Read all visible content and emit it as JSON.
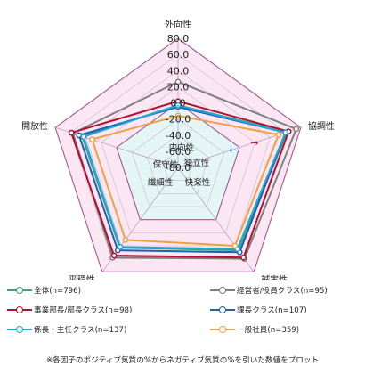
{
  "chart_data": {
    "type": "radar",
    "axes": [
      "外向性",
      "協調性",
      "誠実性",
      "平穏性",
      "開放性"
    ],
    "ticks": [
      "80.0",
      "60.0",
      "40.0",
      "20.0",
      "0.0",
      "-20.0",
      "-40.0",
      "-60.0",
      "-80.0"
    ],
    "rmin": -80,
    "rmax": 80,
    "series": [
      {
        "name": "全体(n=796)",
        "color": "#3aa37a",
        "values": [
          -3,
          62,
          47,
          43,
          45
        ]
      },
      {
        "name": "経営者/役員クラス(n=95)",
        "color": "#808080",
        "values": [
          26,
          74,
          60,
          58,
          57
        ]
      },
      {
        "name": "事業部長/部長クラス(n=98)",
        "color": "#b3102f",
        "values": [
          2,
          64,
          58,
          55,
          59
        ]
      },
      {
        "name": "課長クラス(n=107)",
        "color": "#1f5fb0",
        "values": [
          -5,
          60,
          50,
          47,
          49
        ]
      },
      {
        "name": "係長・主任クラス(n=137)",
        "color": "#1fa8d8",
        "values": [
          -3,
          60,
          45,
          42,
          43
        ]
      },
      {
        "name": "一般社員(n=359)",
        "color": "#f0a040",
        "values": [
          -16,
          51,
          40,
          31,
          32
        ]
      }
    ],
    "inner_labels": [
      "内向性",
      "独立性",
      "保守性",
      "繊細性",
      "快楽性"
    ],
    "arrow_marks": [
      "←",
      "→"
    ]
  },
  "legend": {
    "items": [
      {
        "label": "全体(n=796)",
        "color": "#3aa37a"
      },
      {
        "label": "経営者/役員クラス(n=95)",
        "color": "#808080"
      },
      {
        "label": "事業部長/部長クラス(n=98)",
        "color": "#b3102f"
      },
      {
        "label": "課長クラス(n=107)",
        "color": "#1f5fb0"
      },
      {
        "label": "係長・主任クラス(n=137)",
        "color": "#1fa8d8"
      },
      {
        "label": "一般社員(n=359)",
        "color": "#f0a040"
      }
    ]
  },
  "note": "※各因子のポジティブ気質の%からネガティブ気質の%を引いた数値をプロット"
}
